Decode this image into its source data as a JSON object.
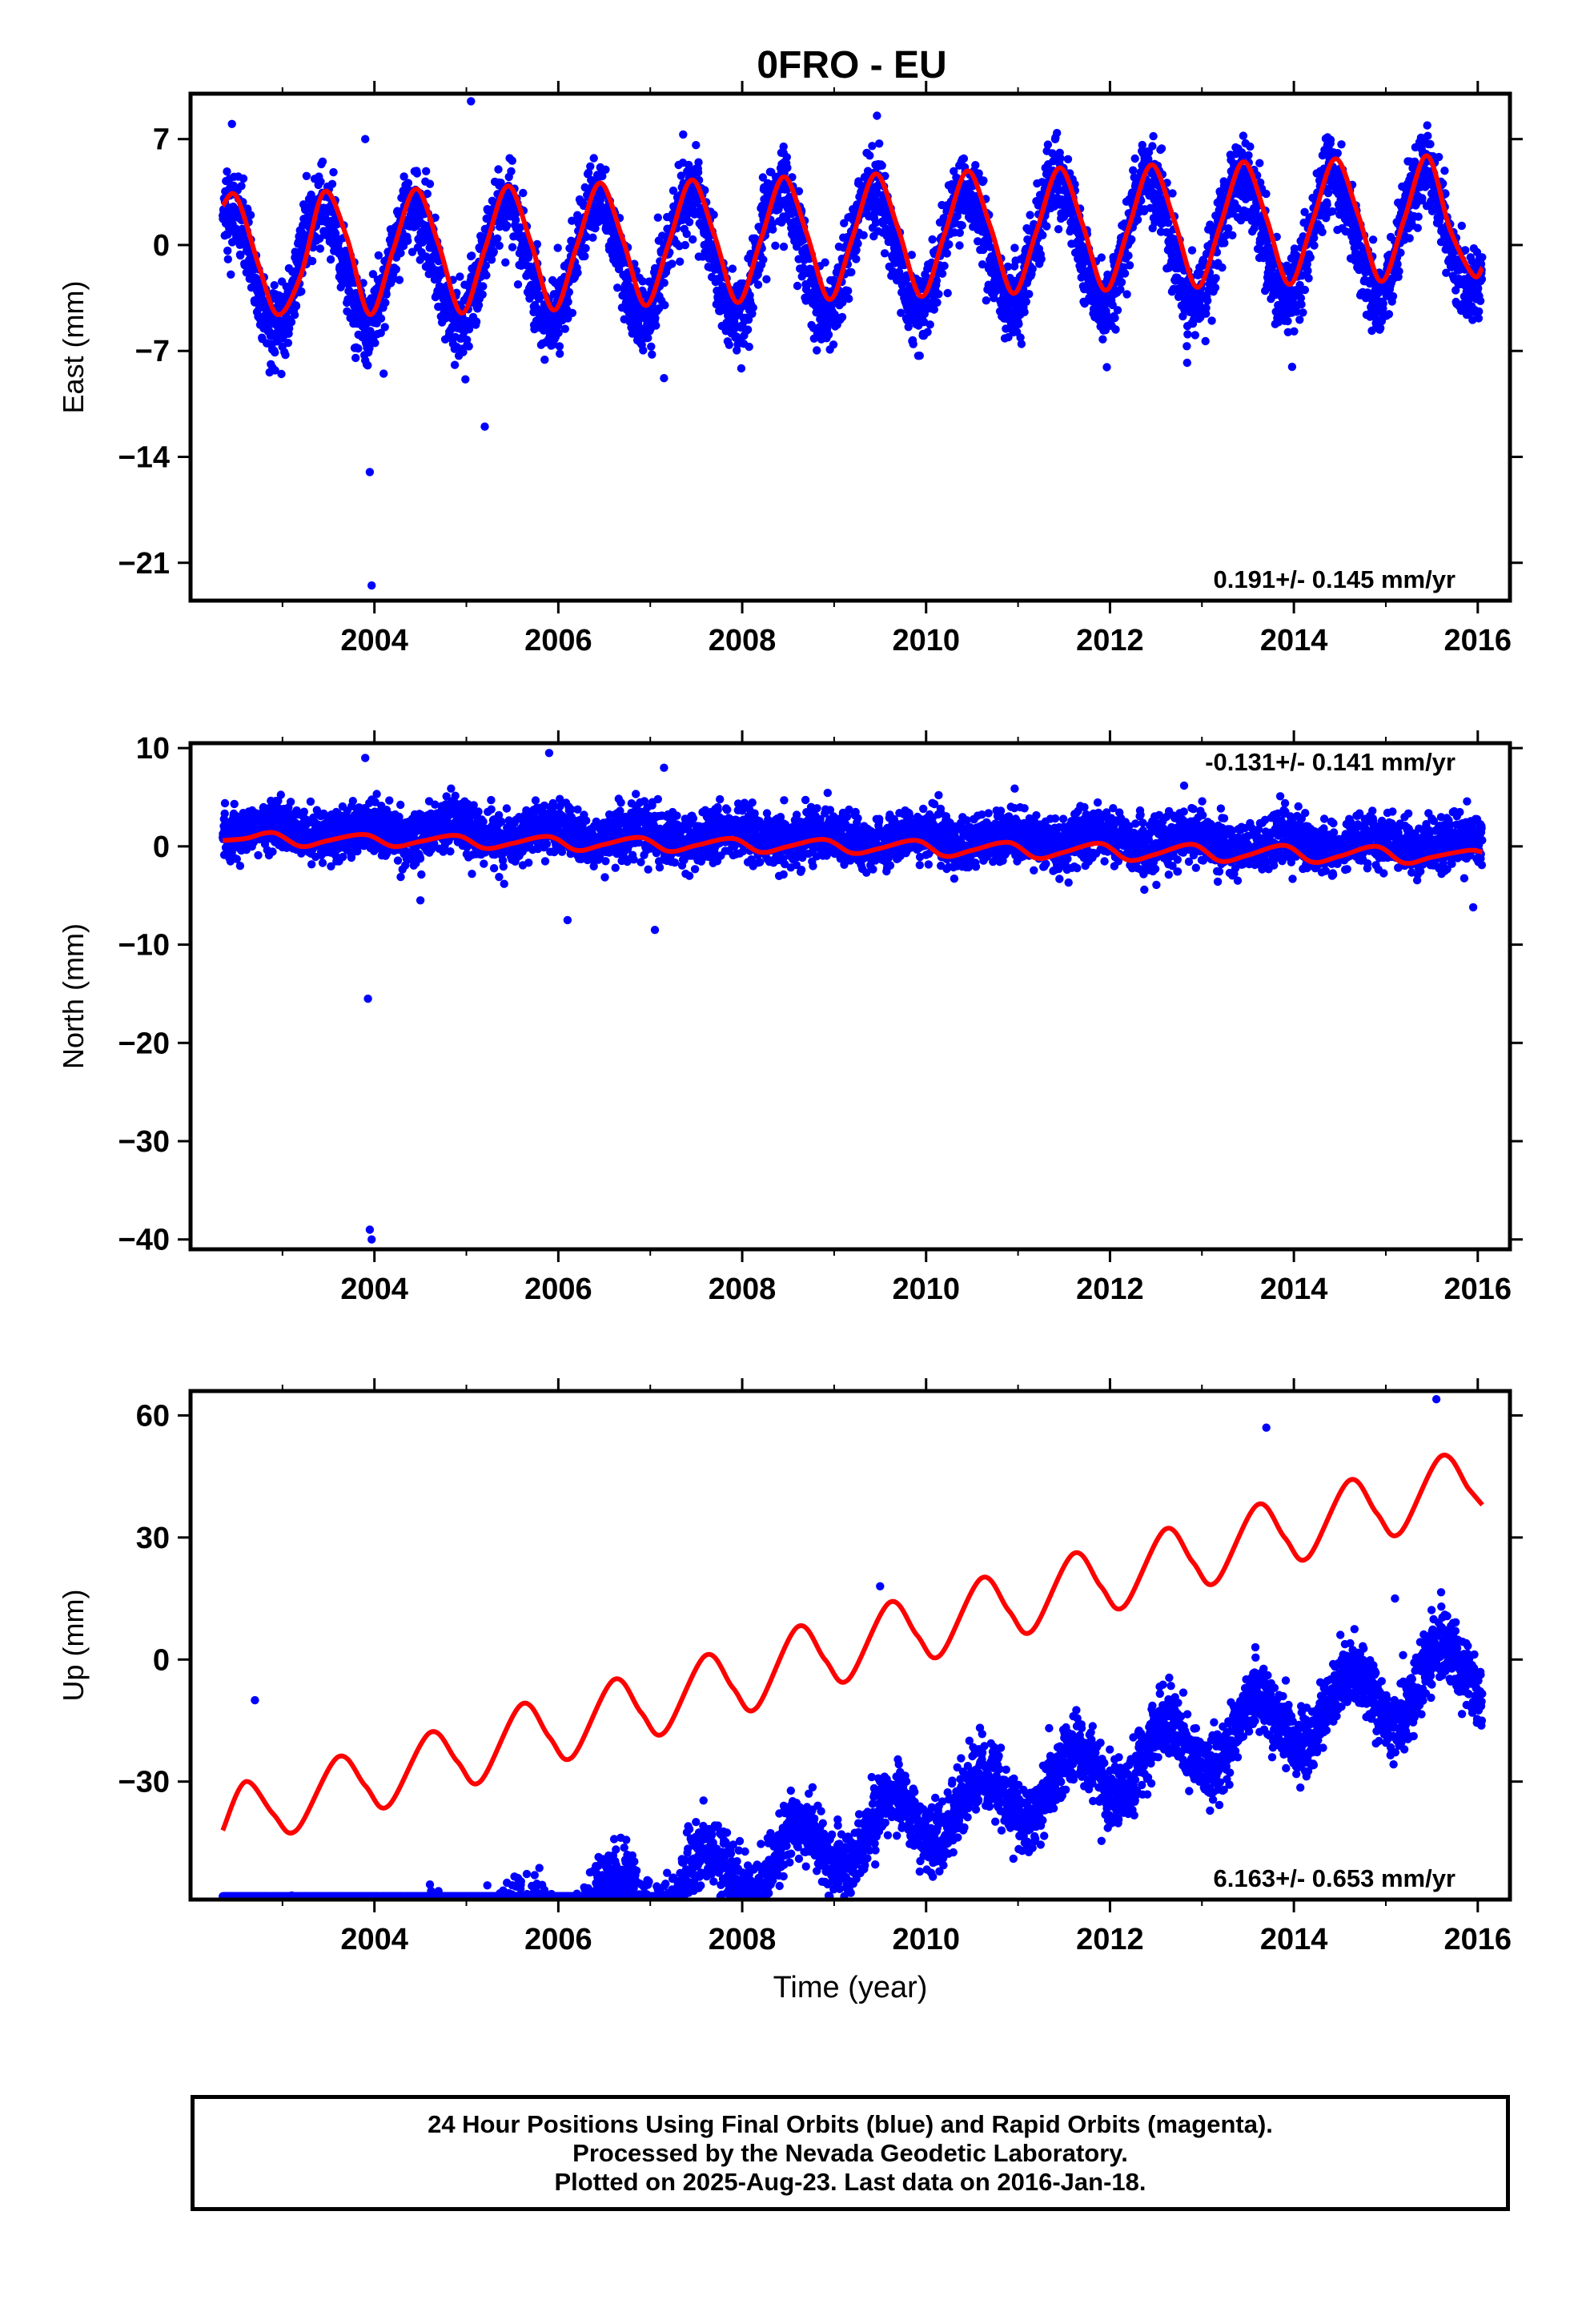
{
  "title": "0FRO - EU",
  "colors": {
    "points": "#0000ff",
    "model": "#ff0000",
    "axes": "#000000"
  },
  "chart_data": [
    {
      "type": "scatter",
      "ylabel": "East (mm)",
      "xlabel": "",
      "xlim": [
        2002.0,
        2016.35
      ],
      "ylim": [
        -23.5,
        10.0
      ],
      "xticks": [
        "2004",
        "2006",
        "2008",
        "2010",
        "2012",
        "2014",
        "2016"
      ],
      "yticks": [
        "7",
        "0",
        "-7",
        "-14",
        "-21"
      ],
      "rate_text": "0.191+/- 0.145 mm/yr",
      "rate_position": "bottom-right",
      "series": [
        {
          "kind": "daily_positions",
          "x_range": [
            2002.35,
            2016.05
          ],
          "model": {
            "offset": -0.4,
            "trend": 0.191,
            "annual_amplitude": 4.0,
            "annual_amplitude_end": 4.2,
            "phase_peak": 0.42,
            "scatter_sd": 1.3
          },
          "outliers": [
            [
              2002.45,
              8.0
            ],
            [
              2003.9,
              7.0
            ],
            [
              2003.95,
              -15.0
            ],
            [
              2003.97,
              -22.5
            ],
            [
              2004.1,
              -8.5
            ],
            [
              2005.05,
              9.5
            ],
            [
              2005.2,
              -12.0
            ],
            [
              2007.15,
              -8.8
            ],
            [
              2008.45,
              6.5
            ]
          ]
        },
        {
          "kind": "fit_curve",
          "x": [
            2002.35,
            2002.5,
            2002.75,
            2002.95,
            2003.2,
            2003.45,
            2003.7,
            2003.95,
            2004.2,
            2004.45,
            2004.7,
            2004.95,
            2005.2,
            2005.45,
            2005.7,
            2005.95,
            2006.2,
            2006.45,
            2006.7,
            2006.95,
            2007.2,
            2007.45,
            2007.7,
            2007.95,
            2008.2,
            2008.45,
            2008.7,
            2008.95,
            2009.2,
            2009.45,
            2009.7,
            2009.95,
            2010.2,
            2010.45,
            2010.7,
            2010.95,
            2011.2,
            2011.45,
            2011.7,
            2011.95,
            2012.2,
            2012.45,
            2012.7,
            2012.95,
            2013.2,
            2013.45,
            2013.7,
            2013.95,
            2014.2,
            2014.45,
            2014.7,
            2014.95,
            2015.2,
            2015.45,
            2015.7,
            2015.95,
            2016.05
          ],
          "y": [
            2.6,
            3.2,
            -1.5,
            -4.6,
            -2.0,
            3.5,
            0.5,
            -4.6,
            -0.4,
            3.7,
            0.0,
            -4.5,
            -0.3,
            3.9,
            0.2,
            -4.3,
            -0.1,
            4.1,
            0.4,
            -4.0,
            0.1,
            4.3,
            0.6,
            -3.8,
            0.3,
            4.5,
            0.8,
            -3.6,
            0.5,
            4.7,
            1.0,
            -3.4,
            0.7,
            4.9,
            1.2,
            -3.2,
            0.9,
            5.1,
            1.4,
            -3.0,
            1.1,
            5.3,
            1.6,
            -2.8,
            1.3,
            5.5,
            1.8,
            -2.6,
            1.5,
            5.7,
            2.0,
            -2.4,
            1.7,
            5.9,
            1.0,
            -2.0,
            -1.5
          ]
        }
      ]
    },
    {
      "type": "scatter",
      "ylabel": "North (mm)",
      "xlabel": "",
      "xlim": [
        2002.0,
        2016.35
      ],
      "ylim": [
        -41.0,
        10.5
      ],
      "xticks": [
        "2004",
        "2006",
        "2008",
        "2010",
        "2012",
        "2014",
        "2016"
      ],
      "yticks": [
        "10",
        "0",
        "-10",
        "-20",
        "-30",
        "-40"
      ],
      "rate_text": "-0.131+/- 0.141 mm/yr",
      "rate_position": "top-right",
      "series": [
        {
          "kind": "daily_positions",
          "x_range": [
            2002.35,
            2016.05
          ],
          "model": {
            "offset": 0.9,
            "trend": -0.131,
            "annual_amplitude": 0.7,
            "annual_amplitude_end": 0.7,
            "phase_peak": 0.9,
            "scatter_sd": 1.3
          },
          "outliers": [
            [
              2003.9,
              9.0
            ],
            [
              2003.93,
              -15.5
            ],
            [
              2003.95,
              -39.0
            ],
            [
              2003.97,
              -40.0
            ],
            [
              2005.9,
              9.5
            ],
            [
              2007.15,
              8.0
            ],
            [
              2007.05,
              -8.5
            ],
            [
              2006.1,
              -7.5
            ],
            [
              2004.5,
              -5.5
            ],
            [
              2015.95,
              -6.2
            ]
          ]
        },
        {
          "kind": "fit_curve",
          "x": [
            2002.35,
            2002.6,
            2002.9,
            2003.2,
            2003.5,
            2003.9,
            2004.2,
            2004.5,
            2004.9,
            2005.2,
            2005.5,
            2005.9,
            2006.2,
            2006.5,
            2006.9,
            2007.2,
            2007.5,
            2007.9,
            2008.2,
            2008.5,
            2008.9,
            2009.2,
            2009.5,
            2009.9,
            2010.2,
            2010.5,
            2010.9,
            2011.2,
            2011.5,
            2011.9,
            2012.2,
            2012.5,
            2012.9,
            2013.2,
            2013.5,
            2013.9,
            2014.2,
            2014.5,
            2014.9,
            2015.2,
            2015.5,
            2015.9,
            2016.05
          ],
          "y": [
            0.6,
            0.8,
            1.4,
            0.0,
            0.6,
            1.2,
            0.0,
            0.5,
            1.1,
            -0.2,
            0.3,
            1.0,
            -0.4,
            0.2,
            0.9,
            -0.5,
            0.1,
            0.8,
            -0.6,
            0.0,
            0.7,
            -0.7,
            -0.2,
            0.6,
            -1.0,
            -0.4,
            0.4,
            -1.2,
            -0.6,
            0.3,
            -1.4,
            -0.8,
            0.2,
            -1.5,
            -0.9,
            0.1,
            -1.6,
            -1.0,
            0.0,
            -1.7,
            -1.1,
            -0.4,
            -0.6
          ]
        }
      ]
    },
    {
      "type": "scatter",
      "ylabel": "Up (mm)",
      "xlabel": "Time (year)",
      "xlim": [
        2002.0,
        2016.35
      ],
      "ylim": [
        -59.0,
        66.0
      ],
      "xticks": [
        "2004",
        "2006",
        "2008",
        "2010",
        "2012",
        "2014",
        "2016"
      ],
      "yticks": [
        "60",
        "30",
        "0",
        "-30"
      ],
      "rate_text": "6.163+/- 0.653 mm/yr",
      "rate_position": "bottom-right",
      "series": [
        {
          "kind": "daily_positions",
          "x_range": [
            2002.35,
            2016.05
          ],
          "model": {
            "offset": -45.0,
            "trend": 6.163,
            "annual_amplitude": 6.0,
            "annual_amplitude_end": 8.0,
            "phase_peak": 0.6,
            "scatter_sd": 4.2
          },
          "outliers": [
            [
              2002.7,
              -10.0
            ],
            [
              2003.1,
              -58.0
            ],
            [
              2010.1,
              -34.0
            ],
            [
              2013.7,
              57.0
            ],
            [
              2015.55,
              64.0
            ],
            [
              2015.1,
              15.0
            ],
            [
              2009.5,
              18.0
            ]
          ]
        },
        {
          "kind": "fit_curve",
          "x": [
            2002.35,
            2002.6,
            2002.9,
            2003.15,
            2003.6,
            2003.9,
            2004.15,
            2004.6,
            2004.9,
            2005.15,
            2005.6,
            2005.9,
            2006.15,
            2006.6,
            2006.9,
            2007.15,
            2007.6,
            2007.9,
            2008.15,
            2008.6,
            2008.9,
            2009.15,
            2009.6,
            2009.9,
            2010.15,
            2010.6,
            2010.9,
            2011.15,
            2011.6,
            2011.9,
            2012.15,
            2012.6,
            2012.9,
            2013.15,
            2013.6,
            2013.9,
            2014.15,
            2014.6,
            2014.9,
            2015.15,
            2015.6,
            2015.9,
            2016.05
          ],
          "y": [
            -42.0,
            -30.0,
            -38.0,
            -42.0,
            -24.0,
            -31.0,
            -36.0,
            -18.0,
            -25.0,
            -30.0,
            -11.0,
            -19.0,
            -24.0,
            -5.0,
            -13.0,
            -18.0,
            1.0,
            -7.0,
            -12.0,
            8.0,
            0.0,
            -5.0,
            14.0,
            6.0,
            1.0,
            20.0,
            12.0,
            7.0,
            26.0,
            18.0,
            13.0,
            32.0,
            24.0,
            19.0,
            38.0,
            30.0,
            25.0,
            44.0,
            36.0,
            31.0,
            50.0,
            42.0,
            38.0
          ]
        }
      ]
    }
  ],
  "footer": {
    "line1": "24 Hour Positions Using Final Orbits (blue) and Rapid Orbits (magenta).",
    "line2": "Processed by the Nevada Geodetic Laboratory.",
    "line3": "Plotted on 2025-Aug-23. Last data on 2016-Jan-18."
  }
}
